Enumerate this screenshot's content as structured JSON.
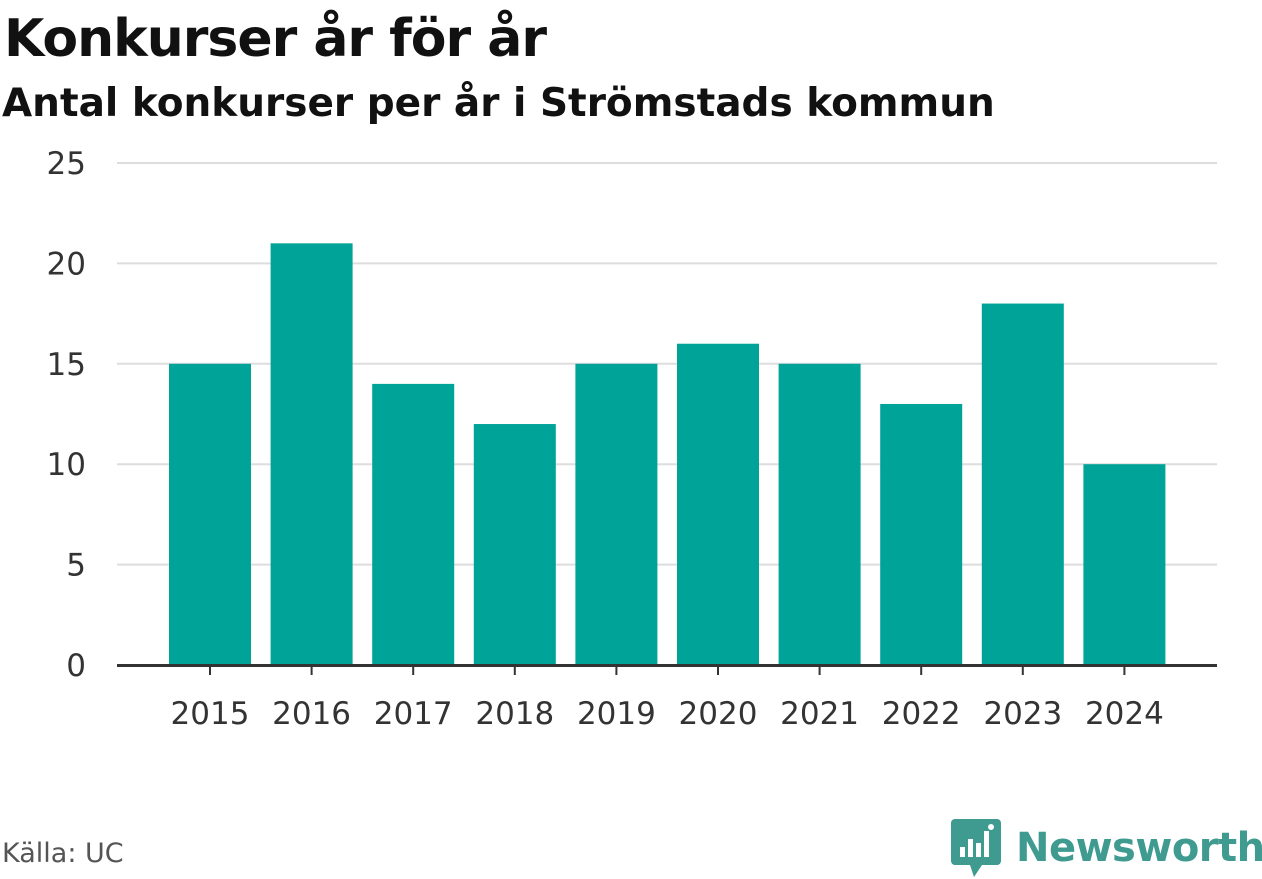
{
  "title": "Konkurser år för år",
  "subtitle": "Antal konkurser per år i Strömstads kommun",
  "source": "Källa: UC",
  "brand": {
    "name": "Newsworthy",
    "icon": "newsworthy-logo-icon",
    "color": "#3f9a8f"
  },
  "colors": {
    "bar": "#00a398",
    "grid": "#dddddd",
    "axis": "#333333"
  },
  "chart_data": {
    "type": "bar",
    "categories": [
      "2015",
      "2016",
      "2017",
      "2018",
      "2019",
      "2020",
      "2021",
      "2022",
      "2023",
      "2024"
    ],
    "values": [
      15,
      21,
      14,
      12,
      15,
      16,
      15,
      13,
      18,
      10
    ],
    "ylim": [
      0,
      25
    ],
    "yticks": [
      0,
      5,
      10,
      15,
      20,
      25
    ],
    "grid": true,
    "legend": "none"
  }
}
